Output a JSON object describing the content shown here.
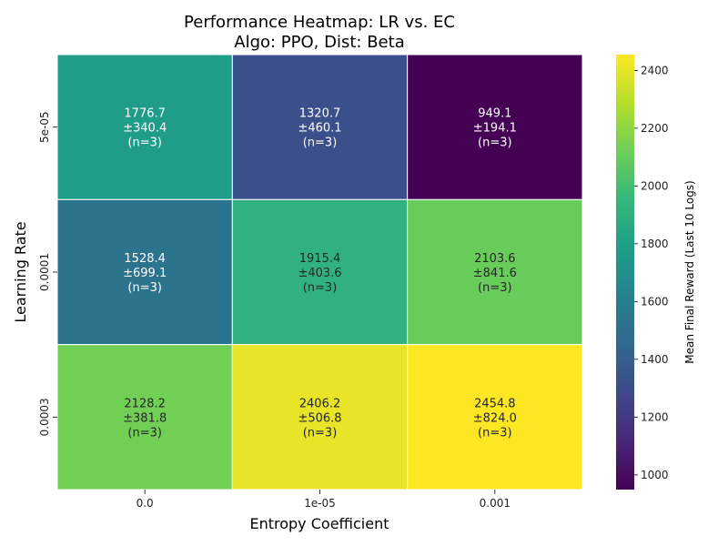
{
  "chart_data": {
    "type": "heatmap",
    "title_lines": [
      "Performance Heatmap: LR vs. EC",
      "Algo: PPO, Dist: Beta"
    ],
    "xlabel": "Entropy Coefficient",
    "ylabel": "Learning Rate",
    "x_categories": [
      "0.0",
      "1e-05",
      "0.001"
    ],
    "y_categories": [
      "5e-05",
      "0.0001",
      "0.0003"
    ],
    "cells": [
      [
        {
          "mean": 1776.7,
          "std": 340.4,
          "n": 3
        },
        {
          "mean": 1320.7,
          "std": 460.1,
          "n": 3
        },
        {
          "mean": 949.1,
          "std": 194.1,
          "n": 3
        }
      ],
      [
        {
          "mean": 1528.4,
          "std": 699.1,
          "n": 3
        },
        {
          "mean": 1915.4,
          "std": 403.6,
          "n": 3
        },
        {
          "mean": 2103.6,
          "std": 841.6,
          "n": 3
        }
      ],
      [
        {
          "mean": 2128.2,
          "std": 381.8,
          "n": 3
        },
        {
          "mean": 2406.2,
          "std": 506.8,
          "n": 3
        },
        {
          "mean": 2454.8,
          "std": 824.0,
          "n": 3
        }
      ]
    ],
    "colorbar": {
      "label": "Mean Final Reward (Last 10 Logs)",
      "range": [
        949.1,
        2454.8
      ],
      "ticks": [
        1000,
        1200,
        1400,
        1600,
        1800,
        2000,
        2200,
        2400
      ],
      "colormap": "viridis"
    }
  }
}
